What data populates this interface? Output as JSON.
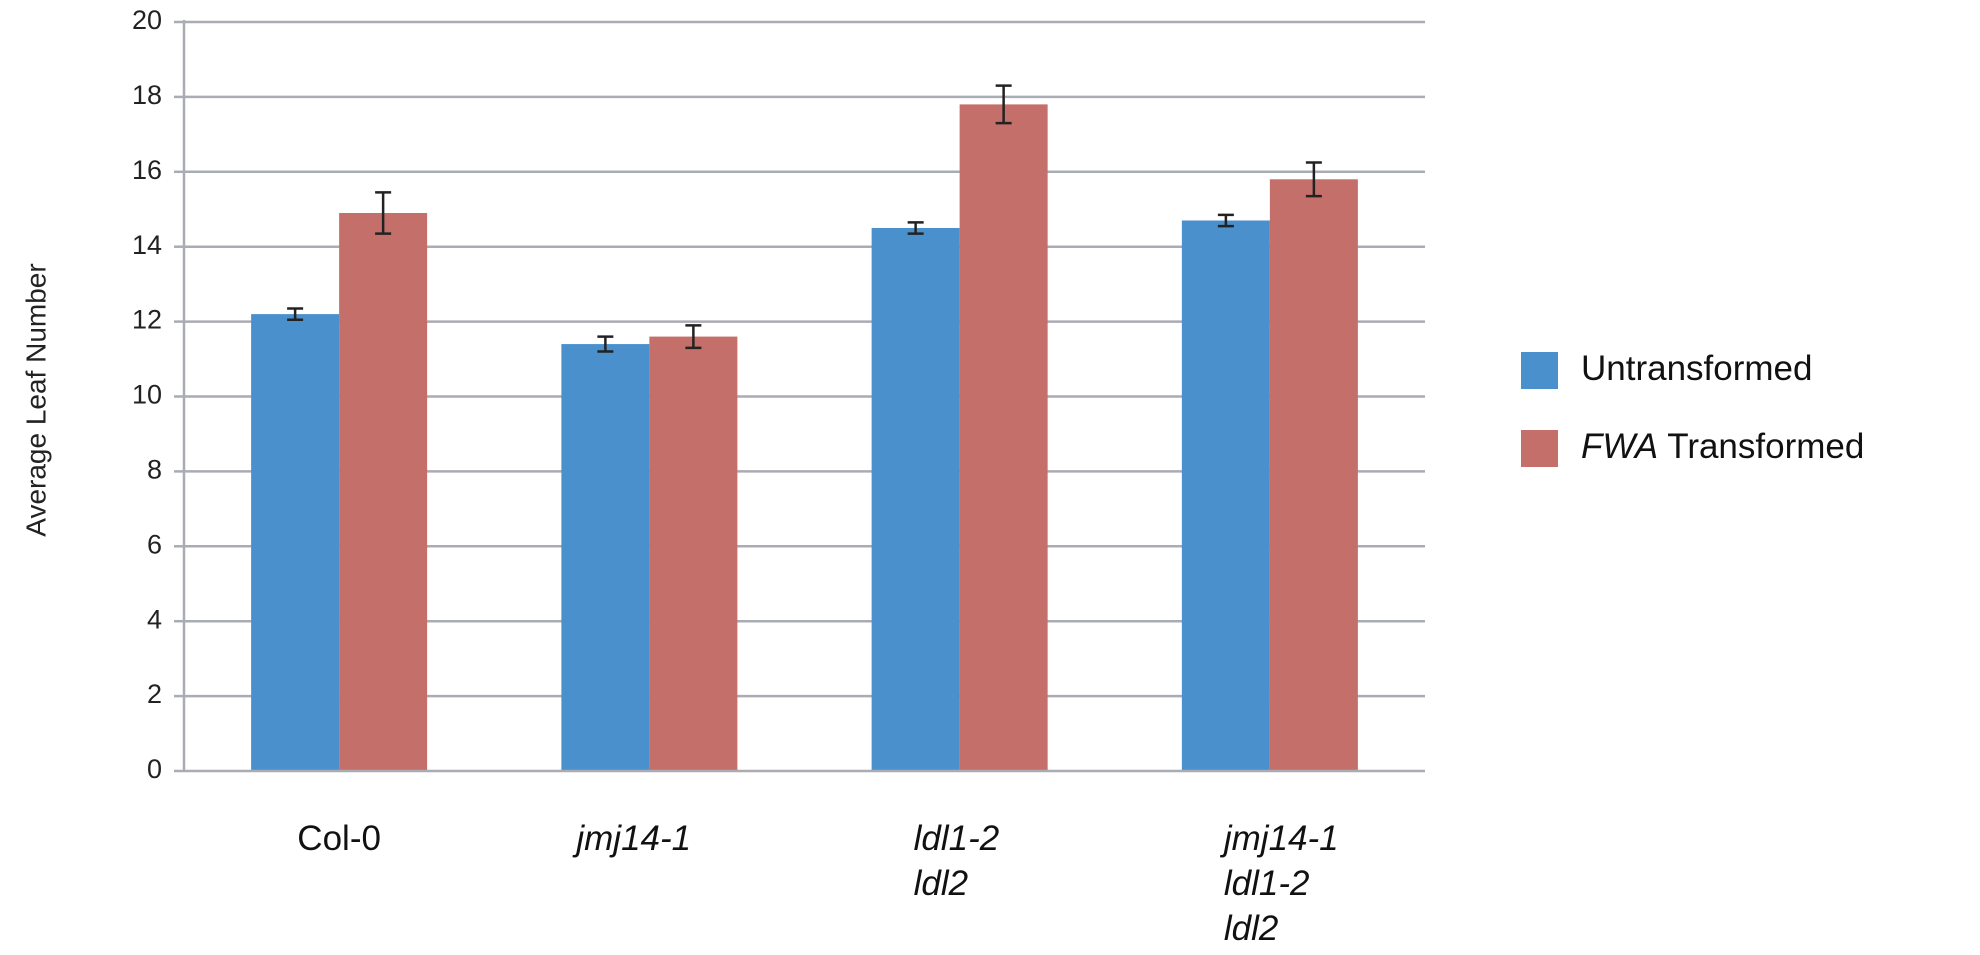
{
  "chart_data": {
    "type": "bar",
    "title": "",
    "xlabel": "",
    "ylabel": "Average Leaf Number",
    "ylim": [
      0,
      20
    ],
    "yticks": [
      0,
      2,
      4,
      6,
      8,
      10,
      12,
      14,
      16,
      18,
      20
    ],
    "grid": true,
    "legend_position": "right",
    "categories": [
      {
        "lines": [
          "Col-0"
        ],
        "italic": false
      },
      {
        "lines": [
          "jmj14-1"
        ],
        "italic": true
      },
      {
        "lines": [
          "ldl1-2",
          "ldl2"
        ],
        "italic": true
      },
      {
        "lines": [
          "jmj14-1",
          "ldl1-2",
          "ldl2"
        ],
        "italic": true
      }
    ],
    "series": [
      {
        "name": "Untransformed",
        "legend_parts": [
          {
            "text": "Untransformed",
            "italic": false
          }
        ],
        "color": "#4a90cc",
        "values": [
          12.2,
          11.4,
          14.5,
          14.7
        ],
        "errors": [
          0.15,
          0.2,
          0.15,
          0.15
        ]
      },
      {
        "name": "FWA Transformed",
        "legend_parts": [
          {
            "text": "FWA",
            "italic": true
          },
          {
            "text": " Transformed",
            "italic": false
          }
        ],
        "color": "#c46f69",
        "values": [
          14.9,
          11.6,
          17.8,
          15.8
        ],
        "errors": [
          0.55,
          0.3,
          0.5,
          0.45
        ]
      }
    ]
  }
}
